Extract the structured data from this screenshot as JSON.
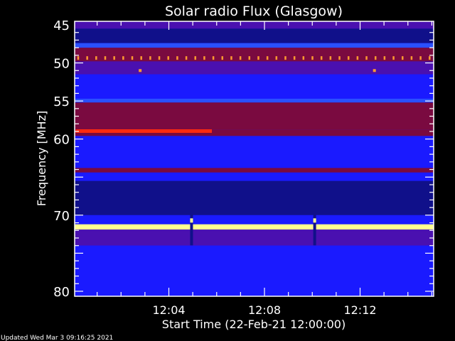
{
  "chart_data": {
    "type": "heatmap",
    "title": "Solar radio Flux (Glasgow)",
    "xlabel": "Start Time (22-Feb-21 12:00:00)",
    "ylabel": "Frequency [MHz]",
    "xlim_minutes_after_12_00": [
      0,
      15.1
    ],
    "ylim": [
      45,
      80
    ],
    "y_inverted": true,
    "x_ticks": [
      {
        "minute": 4,
        "label": "12:04"
      },
      {
        "minute": 8,
        "label": "12:08"
      },
      {
        "minute": 12,
        "label": "12:12"
      }
    ],
    "y_ticks": [
      {
        "value": 45,
        "label": "45"
      },
      {
        "value": 50,
        "label": "50"
      },
      {
        "value": 55,
        "label": "55"
      },
      {
        "value": 60,
        "label": "60"
      },
      {
        "value": 70,
        "label": "70"
      },
      {
        "value": 80,
        "label": "80"
      }
    ],
    "colors": {
      "dark_blue": "#10108a",
      "blue": "#1a1aff",
      "bright_blue": "#2a50ff",
      "purple": "#4a10b0",
      "dark_red": "#7a0a40",
      "red": "#ff2a10",
      "orange": "#ff9a30",
      "yellow": "#ffff90"
    },
    "bands": [
      {
        "f0": 45,
        "f1": 45.5,
        "level": "purple"
      },
      {
        "f0": 45.5,
        "f1": 47.4,
        "level": "dark_blue"
      },
      {
        "f0": 47.4,
        "f1": 48,
        "level": "bright_blue"
      },
      {
        "f0": 48,
        "f1": 49.8,
        "level": "dark_red"
      },
      {
        "f0": 49.8,
        "f1": 51.5,
        "level": "purple"
      },
      {
        "f0": 51.5,
        "f1": 54.7,
        "level": "blue"
      },
      {
        "f0": 54.7,
        "f1": 55.2,
        "level": "bright_blue"
      },
      {
        "f0": 55.2,
        "f1": 58.8,
        "level": "dark_red"
      },
      {
        "f0": 58.8,
        "f1": 59.6,
        "level": "dark_red"
      },
      {
        "f0": 59.6,
        "f1": 63.8,
        "level": "blue"
      },
      {
        "f0": 63.8,
        "f1": 64.4,
        "level": "dark_red"
      },
      {
        "f0": 64.4,
        "f1": 65.5,
        "level": "blue"
      },
      {
        "f0": 65.5,
        "f1": 70,
        "level": "dark_blue"
      },
      {
        "f0": 70,
        "f1": 71.2,
        "level": "blue"
      },
      {
        "f0": 71.2,
        "f1": 71.9,
        "level": "yellow"
      },
      {
        "f0": 71.9,
        "f1": 74,
        "level": "purple"
      },
      {
        "f0": 74,
        "f1": 80,
        "level": "blue"
      }
    ],
    "features": [
      {
        "kind": "periodic-spikes",
        "freq": 49.4,
        "level": "orange",
        "t0": 0.2,
        "t1": 14.9,
        "count": 40
      },
      {
        "kind": "partial-band",
        "freq": 59.0,
        "level": "red",
        "t0": 0.1,
        "t1": 5.8
      },
      {
        "kind": "spot",
        "freq": 51.0,
        "t": 2.8,
        "level": "orange"
      },
      {
        "kind": "spot",
        "freq": 51.0,
        "t": 12.6,
        "level": "orange"
      },
      {
        "kind": "burst",
        "freq": 70.7,
        "t": 4.95,
        "level": "yellow"
      },
      {
        "kind": "burst",
        "freq": 70.7,
        "t": 10.1,
        "level": "yellow"
      }
    ]
  },
  "footer": {
    "updated": "Updated Wed Mar  3 09:16:25 2021"
  }
}
